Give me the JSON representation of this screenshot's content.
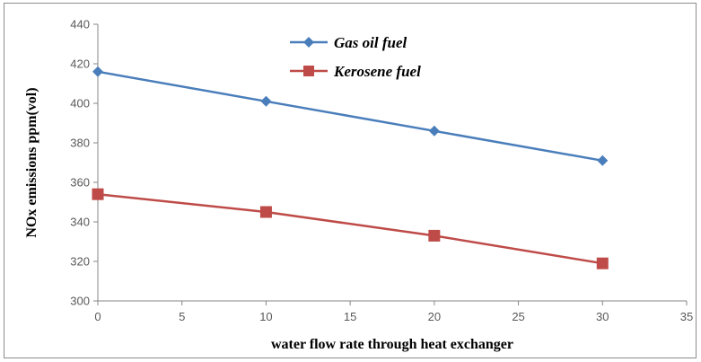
{
  "chart_data": {
    "type": "line",
    "xlabel": "water flow rate through heat exchanger",
    "ylabel": "NOx emissions ppm(vol)",
    "xlim": [
      0,
      35
    ],
    "ylim": [
      300,
      440
    ],
    "xticks": [
      0,
      5,
      10,
      15,
      20,
      25,
      30,
      35
    ],
    "yticks": [
      300,
      320,
      340,
      360,
      380,
      400,
      420,
      440
    ],
    "grid": false,
    "legend": "top-center",
    "series": [
      {
        "name": "Gas oil fuel",
        "marker": "diamond",
        "color": "#4a7ebb",
        "x": [
          0,
          10,
          20,
          30
        ],
        "y": [
          416,
          401,
          386,
          371
        ]
      },
      {
        "name": "Kerosene fuel",
        "marker": "square",
        "color": "#be4b48",
        "x": [
          0,
          10,
          20,
          30
        ],
        "y": [
          354,
          345,
          333,
          319
        ]
      }
    ]
  }
}
